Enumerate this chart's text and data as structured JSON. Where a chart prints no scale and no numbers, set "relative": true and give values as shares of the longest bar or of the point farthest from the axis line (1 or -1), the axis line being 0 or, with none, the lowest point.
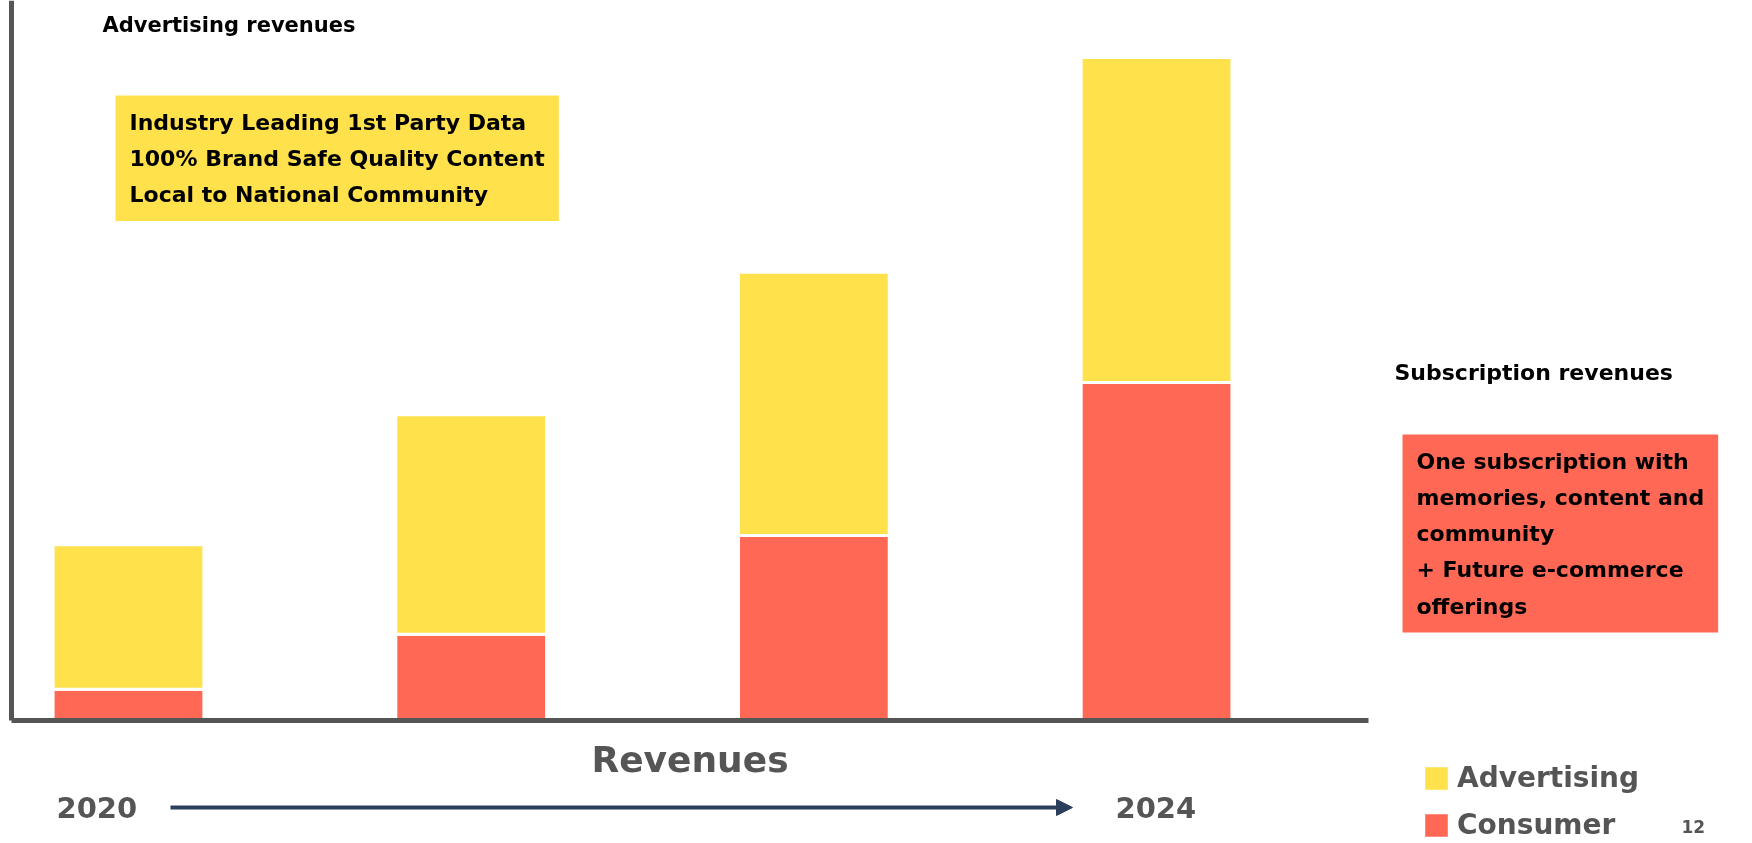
{
  "chart_data": {
    "type": "bar",
    "stacked": true,
    "relative": true,
    "categories": [
      null,
      null,
      null,
      null
    ],
    "xlabel": "Revenues",
    "series": [
      {
        "name": "Consumer",
        "color": "#ff6855",
        "values": [
          0.047,
          0.13,
          0.279,
          0.51
        ]
      },
      {
        "name": "Advertising",
        "color": "#fee14b",
        "values": [
          0.218,
          0.331,
          0.397,
          0.49
        ]
      }
    ],
    "legend": "bottom right",
    "grid": false,
    "annotations": [
      "Advertising revenues",
      "Industry Leading 1st Party Data\n100% Brand Safe Quality Content\nLocal to National Community",
      "2020",
      "2024",
      "Subscription revenues",
      "One subscription with\nmemories, content and\ncommunity\n+ Future e-commerce\nofferings",
      "12"
    ]
  }
}
